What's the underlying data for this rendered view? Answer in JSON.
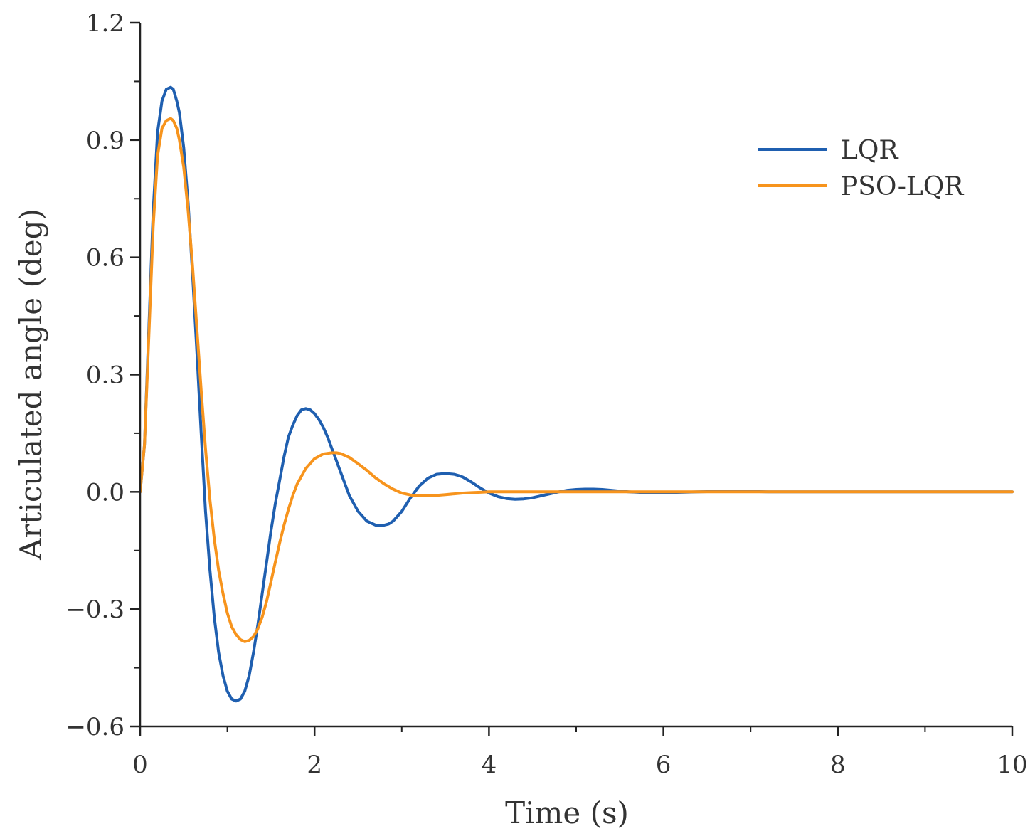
{
  "chart_data": {
    "type": "line",
    "title": "",
    "xlabel": "Time (s)",
    "ylabel": "Articulated angle (deg)",
    "xlim": [
      0,
      10
    ],
    "ylim": [
      -0.6,
      1.2
    ],
    "xticks": [
      0,
      2,
      4,
      6,
      8,
      10
    ],
    "yticks": [
      -0.6,
      -0.3,
      0.0,
      0.3,
      0.6,
      0.9,
      1.2
    ],
    "xtick_labels": [
      "0",
      "2",
      "4",
      "6",
      "8",
      "10"
    ],
    "ytick_labels": [
      "−0.6",
      "−0.3",
      "0.0",
      "0.3",
      "0.6",
      "0.9",
      "1.2"
    ],
    "grid": false,
    "legend_position": "top-right",
    "series": [
      {
        "name": "LQR",
        "color": "#1f5fb0",
        "x": [
          0,
          0.05,
          0.1,
          0.15,
          0.2,
          0.25,
          0.3,
          0.35,
          0.38,
          0.42,
          0.45,
          0.5,
          0.55,
          0.6,
          0.65,
          0.7,
          0.75,
          0.8,
          0.85,
          0.9,
          0.95,
          1.0,
          1.05,
          1.1,
          1.15,
          1.2,
          1.25,
          1.3,
          1.35,
          1.4,
          1.45,
          1.5,
          1.55,
          1.6,
          1.65,
          1.7,
          1.75,
          1.8,
          1.85,
          1.9,
          1.95,
          2.0,
          2.05,
          2.1,
          2.15,
          2.2,
          2.25,
          2.3,
          2.4,
          2.5,
          2.6,
          2.7,
          2.8,
          2.85,
          2.9,
          3.0,
          3.1,
          3.2,
          3.3,
          3.4,
          3.5,
          3.6,
          3.65,
          3.7,
          3.8,
          3.9,
          4.0,
          4.1,
          4.2,
          4.3,
          4.4,
          4.5,
          4.6,
          4.7,
          4.8,
          4.9,
          5.0,
          5.1,
          5.2,
          5.3,
          5.4,
          5.5,
          5.6,
          5.8,
          6.0,
          6.2,
          6.4,
          6.6,
          6.8,
          7.0,
          7.2,
          7.4,
          7.6,
          7.8,
          8.0,
          8.5,
          9.0,
          9.5,
          10.0
        ],
        "y": [
          0.0,
          0.12,
          0.42,
          0.72,
          0.92,
          1.0,
          1.03,
          1.035,
          1.03,
          1.0,
          0.97,
          0.88,
          0.74,
          0.56,
          0.36,
          0.15,
          -0.05,
          -0.2,
          -0.32,
          -0.41,
          -0.47,
          -0.51,
          -0.53,
          -0.535,
          -0.53,
          -0.51,
          -0.47,
          -0.41,
          -0.34,
          -0.26,
          -0.18,
          -0.1,
          -0.03,
          0.03,
          0.09,
          0.14,
          0.17,
          0.195,
          0.21,
          0.213,
          0.21,
          0.2,
          0.185,
          0.165,
          0.14,
          0.11,
          0.08,
          0.05,
          -0.01,
          -0.05,
          -0.075,
          -0.085,
          -0.085,
          -0.082,
          -0.075,
          -0.05,
          -0.015,
          0.015,
          0.035,
          0.045,
          0.047,
          0.045,
          0.042,
          0.038,
          0.025,
          0.01,
          -0.003,
          -0.012,
          -0.017,
          -0.019,
          -0.018,
          -0.015,
          -0.01,
          -0.005,
          0.0,
          0.004,
          0.006,
          0.007,
          0.007,
          0.006,
          0.004,
          0.002,
          0.0,
          -0.002,
          -0.002,
          -0.001,
          0.0,
          0.001,
          0.001,
          0.001,
          0.0,
          0.0,
          0.0,
          0.0,
          0.0,
          0.0,
          0.0,
          0.0,
          0.0
        ]
      },
      {
        "name": "PSO-LQR",
        "color": "#f7941d",
        "x": [
          0,
          0.05,
          0.1,
          0.15,
          0.2,
          0.25,
          0.3,
          0.35,
          0.38,
          0.42,
          0.45,
          0.5,
          0.55,
          0.6,
          0.65,
          0.7,
          0.75,
          0.8,
          0.85,
          0.9,
          0.95,
          1.0,
          1.05,
          1.1,
          1.15,
          1.2,
          1.25,
          1.3,
          1.35,
          1.4,
          1.45,
          1.5,
          1.55,
          1.6,
          1.65,
          1.7,
          1.75,
          1.8,
          1.9,
          2.0,
          2.1,
          2.2,
          2.25,
          2.3,
          2.4,
          2.5,
          2.6,
          2.7,
          2.8,
          2.9,
          3.0,
          3.1,
          3.2,
          3.3,
          3.4,
          3.5,
          3.6,
          3.7,
          3.8,
          3.9,
          4.0,
          4.2,
          4.4,
          4.6,
          4.8,
          5.0,
          5.5,
          6.0,
          6.5,
          7.0,
          8.0,
          9.0,
          10.0
        ],
        "y": [
          0.0,
          0.12,
          0.4,
          0.68,
          0.86,
          0.93,
          0.95,
          0.955,
          0.95,
          0.93,
          0.9,
          0.83,
          0.72,
          0.58,
          0.42,
          0.26,
          0.11,
          -0.02,
          -0.12,
          -0.2,
          -0.26,
          -0.31,
          -0.345,
          -0.365,
          -0.378,
          -0.383,
          -0.38,
          -0.37,
          -0.35,
          -0.32,
          -0.28,
          -0.23,
          -0.18,
          -0.13,
          -0.085,
          -0.045,
          -0.01,
          0.02,
          0.06,
          0.085,
          0.097,
          0.1,
          0.1,
          0.098,
          0.088,
          0.072,
          0.055,
          0.036,
          0.02,
          0.007,
          -0.003,
          -0.008,
          -0.01,
          -0.01,
          -0.009,
          -0.007,
          -0.005,
          -0.003,
          -0.002,
          -0.001,
          0.0,
          0.0,
          0.0,
          0.0,
          0.0,
          0.0,
          0.0,
          0.0,
          0.0,
          0.0,
          0.0,
          0.0,
          0.0
        ]
      }
    ]
  }
}
